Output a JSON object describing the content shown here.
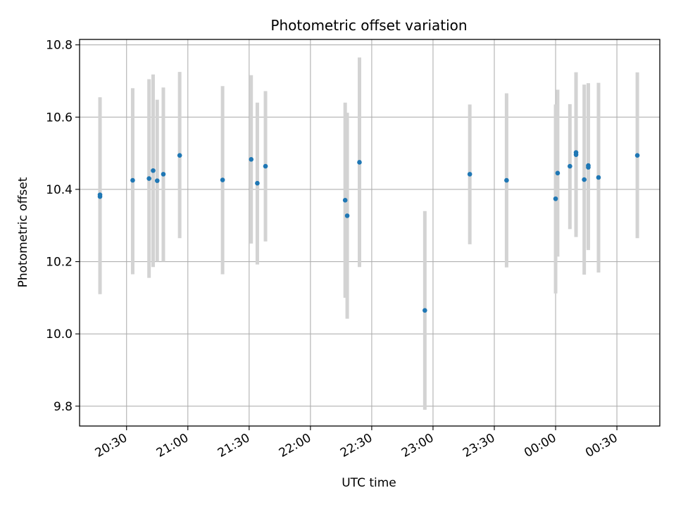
{
  "chart_data": {
    "type": "scatter",
    "title": "Photometric offset variation",
    "xlabel": "UTC time",
    "ylabel": "Photometric offset",
    "x_unit": "time (HH:MM UTC, date rollover at 00:00)",
    "xlim": [
      "20:07",
      "00:51"
    ],
    "ylim": [
      9.745,
      10.815
    ],
    "xticks": [
      "20:30",
      "21:00",
      "21:30",
      "22:00",
      "22:30",
      "23:00",
      "23:30",
      "00:00",
      "00:30"
    ],
    "yticks": [
      "9.8",
      "10.0",
      "10.2",
      "10.4",
      "10.6",
      "10.8"
    ],
    "grid": true,
    "colors": {
      "point": "#1f77b4",
      "errorbar": "#d3d3d3",
      "grid": "#b0b0b0"
    },
    "points": [
      {
        "x": "20:17",
        "y": 10.38,
        "err_low": 10.11,
        "err_high": 10.65
      },
      {
        "x": "20:17",
        "y": 10.385,
        "err_low": 10.115,
        "err_high": 10.655
      },
      {
        "x": "20:33",
        "y": 10.425,
        "err_low": 10.165,
        "err_high": 10.68
      },
      {
        "x": "20:41",
        "y": 10.43,
        "err_low": 10.155,
        "err_high": 10.705
      },
      {
        "x": "20:43",
        "y": 10.452,
        "err_low": 10.185,
        "err_high": 10.718
      },
      {
        "x": "20:45",
        "y": 10.424,
        "err_low": 10.2,
        "err_high": 10.648
      },
      {
        "x": "20:48",
        "y": 10.442,
        "err_low": 10.2,
        "err_high": 10.682
      },
      {
        "x": "20:56",
        "y": 10.494,
        "err_low": 10.265,
        "err_high": 10.725
      },
      {
        "x": "21:17",
        "y": 10.426,
        "err_low": 10.165,
        "err_high": 10.686
      },
      {
        "x": "21:31",
        "y": 10.483,
        "err_low": 10.25,
        "err_high": 10.716
      },
      {
        "x": "21:34",
        "y": 10.417,
        "err_low": 10.192,
        "err_high": 10.64
      },
      {
        "x": "21:38",
        "y": 10.464,
        "err_low": 10.256,
        "err_high": 10.672
      },
      {
        "x": "22:17",
        "y": 10.37,
        "err_low": 10.1,
        "err_high": 10.64
      },
      {
        "x": "22:18",
        "y": 10.327,
        "err_low": 10.042,
        "err_high": 10.612
      },
      {
        "x": "22:24",
        "y": 10.475,
        "err_low": 10.185,
        "err_high": 10.765
      },
      {
        "x": "22:56",
        "y": 10.065,
        "err_low": 9.79,
        "err_high": 10.34
      },
      {
        "x": "23:18",
        "y": 10.442,
        "err_low": 10.248,
        "err_high": 10.635
      },
      {
        "x": "23:36",
        "y": 10.425,
        "err_low": 10.184,
        "err_high": 10.666
      },
      {
        "x": "00:00",
        "y": 10.374,
        "err_low": 10.112,
        "err_high": 10.635
      },
      {
        "x": "00:01",
        "y": 10.445,
        "err_low": 10.214,
        "err_high": 10.676
      },
      {
        "x": "00:07",
        "y": 10.464,
        "err_low": 10.29,
        "err_high": 10.636
      },
      {
        "x": "00:10",
        "y": 10.502,
        "err_low": 10.28,
        "err_high": 10.724
      },
      {
        "x": "00:10",
        "y": 10.496,
        "err_low": 10.268,
        "err_high": 10.724
      },
      {
        "x": "00:14",
        "y": 10.427,
        "err_low": 10.164,
        "err_high": 10.69
      },
      {
        "x": "00:16",
        "y": 10.461,
        "err_low": 10.232,
        "err_high": 10.69
      },
      {
        "x": "00:16",
        "y": 10.466,
        "err_low": 10.238,
        "err_high": 10.694
      },
      {
        "x": "00:21",
        "y": 10.433,
        "err_low": 10.17,
        "err_high": 10.695
      },
      {
        "x": "00:40",
        "y": 10.494,
        "err_low": 10.265,
        "err_high": 10.724
      }
    ]
  }
}
